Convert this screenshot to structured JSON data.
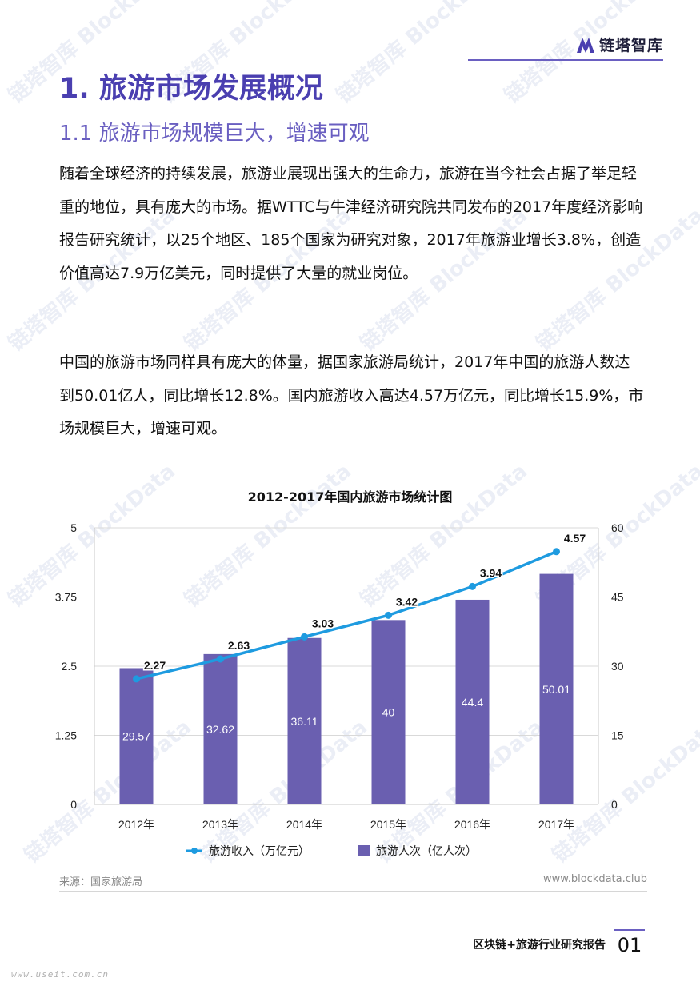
{
  "header": {
    "logo_text": "链塔智库"
  },
  "section_title": "1. 旅游市场发展概况",
  "subsection_title": "1.1 旅游市场规模巨大，增速可观",
  "paragraphs": [
    "随着全球经济的持续发展，旅游业展现出强大的生命力，旅游在当今社会占据了举足轻重的地位，具有庞大的市场。据WTTC与牛津经济研究院共同发布的2017年度经济影响报告研究统计，以25个地区、185个国家为研究对象，2017年旅游业增长3.8%，创造价值高达7.9万亿美元，同时提供了大量的就业岗位。",
    "中国的旅游市场同样具有庞大的体量，据国家旅游局统计，2017年中国的旅游人数达到50.01亿人，同比增长12.8%。国内旅游收入高达4.57万亿元，同比增长15.9%，市场规模巨大，增速可观。"
  ],
  "chart_data": {
    "type": "bar",
    "title": "2012-2017年国内旅游市场统计图",
    "categories": [
      "2012年",
      "2013年",
      "2014年",
      "2015年",
      "2016年",
      "2017年"
    ],
    "series": [
      {
        "name": "旅游人次（亿人次）",
        "type": "bar",
        "axis": "right",
        "color": "#6a5fb0",
        "values": [
          29.57,
          32.62,
          36.11,
          40,
          44.4,
          50.01
        ],
        "labels": [
          "29.57",
          "32.62",
          "36.11",
          "40",
          "44.4",
          "50.01"
        ]
      },
      {
        "name": "旅游收入（万亿元）",
        "type": "line",
        "axis": "left",
        "color": "#1e9be0",
        "values": [
          2.27,
          2.63,
          3.03,
          3.42,
          3.94,
          4.57
        ],
        "labels": [
          "2.27",
          "2.63",
          "3.03",
          "3.42",
          "3.94",
          "4.57"
        ]
      }
    ],
    "y_left": {
      "min": 0,
      "max": 5,
      "ticks": [
        "0",
        "1.25",
        "2.5",
        "3.75",
        "5"
      ],
      "tick_values": [
        0,
        1.25,
        2.5,
        3.75,
        5
      ]
    },
    "y_right": {
      "min": 0,
      "max": 60,
      "ticks": [
        "0",
        "15",
        "30",
        "45",
        "60"
      ],
      "tick_values": [
        0,
        15,
        30,
        45,
        60
      ]
    },
    "grid": true,
    "legend_position": "bottom"
  },
  "source_text": "来源：国家旅游局",
  "website": "www.blockdata.club",
  "footer": {
    "report_title": "区块链+旅游行业研究报告",
    "page_number": "01"
  },
  "watermark": {
    "text_cn": "链塔智库",
    "text_en": "BlockData",
    "url": "www.useit.com.cn"
  }
}
